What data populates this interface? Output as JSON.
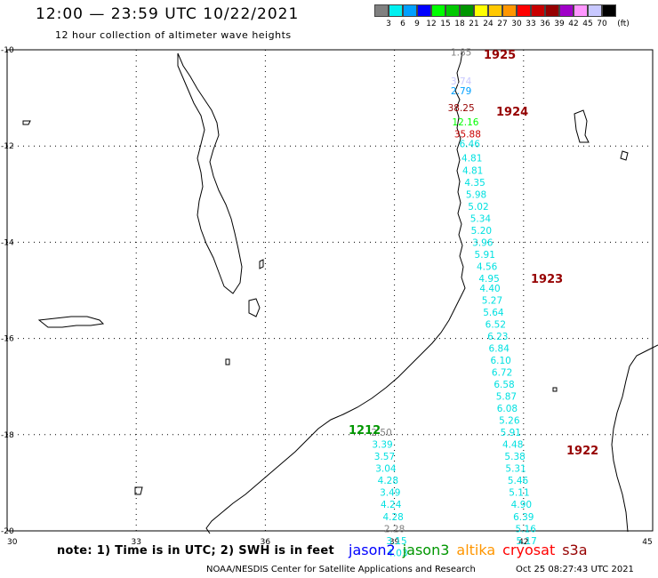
{
  "header": {
    "title": "12:00 — 23:59 UTC 10/22/2021",
    "subtitle": "12 hour collection of altimeter wave heights"
  },
  "legend": {
    "colors": [
      "#808080",
      "#00f0f0",
      "#00a0ff",
      "#0000ff",
      "#00ff00",
      "#00c800",
      "#009600",
      "#ffff00",
      "#ffc800",
      "#ff9600",
      "#ff0000",
      "#c80000",
      "#960000",
      "#a000c8",
      "#ff96ff",
      "#c8c8ff",
      "#000000"
    ],
    "labels": [
      "3",
      "6",
      "9",
      "12",
      "15",
      "18",
      "21",
      "24",
      "27",
      "30",
      "33",
      "36",
      "39",
      "42",
      "45",
      "70",
      "(ft)"
    ]
  },
  "axes": {
    "lon_labels": [
      "30",
      "33",
      "36",
      "39",
      "42",
      "45"
    ],
    "lat_labels": [
      "-10",
      "-12",
      "-14",
      "-16",
      "-18",
      "-20"
    ]
  },
  "tracks": [
    {
      "pass": "1925",
      "pass_color": "#960000",
      "points": [
        {
          "lat": -10.05,
          "lon": 40.55,
          "v": "1.85",
          "c": "#808080"
        }
      ]
    },
    {
      "pass": "1924",
      "pass_color": "#960000",
      "points": [
        {
          "lat": -10.65,
          "lon": 40.55,
          "v": "3.74",
          "c": "#c8c8ff"
        },
        {
          "lat": -10.85,
          "lon": 40.55,
          "v": "2.79",
          "c": "#00a0ff"
        },
        {
          "lat": -11.2,
          "lon": 40.55,
          "v": "38.25",
          "c": "#960000"
        },
        {
          "lat": -11.5,
          "lon": 40.65,
          "v": "12.16",
          "c": "#00ff00"
        },
        {
          "lat": -11.75,
          "lon": 40.7,
          "v": "35.88",
          "c": "#c80000"
        },
        {
          "lat": -11.95,
          "lon": 40.75,
          "v": "6.46",
          "c": "#00e0e0"
        },
        {
          "lat": -12.25,
          "lon": 40.8,
          "v": "4.81",
          "c": "#00e0e0"
        },
        {
          "lat": -12.5,
          "lon": 40.82,
          "v": "4.81",
          "c": "#00e0e0"
        },
        {
          "lat": -12.75,
          "lon": 40.87,
          "v": "4.35",
          "c": "#00e0e0"
        },
        {
          "lat": -13.0,
          "lon": 40.9,
          "v": "5.98",
          "c": "#00e0e0"
        },
        {
          "lat": -13.25,
          "lon": 40.95,
          "v": "5.02",
          "c": "#00e0e0"
        },
        {
          "lat": -13.5,
          "lon": 41.0,
          "v": "5.34",
          "c": "#00e0e0"
        },
        {
          "lat": -13.75,
          "lon": 41.02,
          "v": "5.20",
          "c": "#00e0e0"
        },
        {
          "lat": -14.0,
          "lon": 41.05,
          "v": "3.96",
          "c": "#00e0e0"
        },
        {
          "lat": -14.25,
          "lon": 41.1,
          "v": "5.91",
          "c": "#00e0e0"
        },
        {
          "lat": -14.5,
          "lon": 41.15,
          "v": "4.56",
          "c": "#00e0e0"
        },
        {
          "lat": -14.75,
          "lon": 41.2,
          "v": "4.95",
          "c": "#00e0e0"
        },
        {
          "lat": -14.95,
          "lon": 41.22,
          "v": "4.40",
          "c": "#00e0e0"
        },
        {
          "lat": -15.2,
          "lon": 41.27,
          "v": "5.27",
          "c": "#00e0e0"
        },
        {
          "lat": -15.45,
          "lon": 41.3,
          "v": "5.64",
          "c": "#00e0e0"
        },
        {
          "lat": -15.7,
          "lon": 41.35,
          "v": "6.52",
          "c": "#00e0e0"
        },
        {
          "lat": -15.95,
          "lon": 41.4,
          "v": "6.23",
          "c": "#00e0e0"
        },
        {
          "lat": -16.2,
          "lon": 41.43,
          "v": "6.84",
          "c": "#00e0e0"
        },
        {
          "lat": -16.45,
          "lon": 41.47,
          "v": "6.10",
          "c": "#00e0e0"
        },
        {
          "lat": -16.7,
          "lon": 41.5,
          "v": "6.72",
          "c": "#00e0e0"
        },
        {
          "lat": -16.95,
          "lon": 41.55,
          "v": "6.58",
          "c": "#00e0e0"
        },
        {
          "lat": -17.2,
          "lon": 41.6,
          "v": "5.87",
          "c": "#00e0e0"
        },
        {
          "lat": -17.45,
          "lon": 41.62,
          "v": "6.08",
          "c": "#00e0e0"
        },
        {
          "lat": -17.7,
          "lon": 41.67,
          "v": "5.26",
          "c": "#00e0e0"
        }
      ]
    },
    {
      "pass": "1923",
      "pass_color": "#960000",
      "points": [
        {
          "lat": -17.95,
          "lon": 41.7,
          "v": "5.91",
          "c": "#00e0e0"
        },
        {
          "lat": -18.2,
          "lon": 41.75,
          "v": "4.48",
          "c": "#00e0e0"
        },
        {
          "lat": -18.45,
          "lon": 41.8,
          "v": "5.38",
          "c": "#00e0e0"
        },
        {
          "lat": -18.7,
          "lon": 41.82,
          "v": "5.31",
          "c": "#00e0e0"
        },
        {
          "lat": -18.95,
          "lon": 41.87,
          "v": "5.46",
          "c": "#00e0e0"
        },
        {
          "lat": -19.2,
          "lon": 41.9,
          "v": "5.11",
          "c": "#00e0e0"
        },
        {
          "lat": -19.45,
          "lon": 41.95,
          "v": "4.90",
          "c": "#00e0e0"
        },
        {
          "lat": -19.7,
          "lon": 42.0,
          "v": "6.39",
          "c": "#00e0e0"
        },
        {
          "lat": -19.95,
          "lon": 42.05,
          "v": "5.16",
          "c": "#00e0e0"
        },
        {
          "lat": -20.2,
          "lon": 42.07,
          "v": "5.17",
          "c": "#00e0e0"
        }
      ]
    },
    {
      "pass": "1922",
      "pass_color": "#960000",
      "points": []
    },
    {
      "pass": "1212",
      "pass_color": "#009600",
      "points": [
        {
          "lat": -17.95,
          "lon": 38.7,
          "v": "2.50",
          "c": "#808080"
        },
        {
          "lat": -18.2,
          "lon": 38.72,
          "v": "3.39",
          "c": "#00e0e0"
        },
        {
          "lat": -18.45,
          "lon": 38.77,
          "v": "3.57",
          "c": "#00e0e0"
        },
        {
          "lat": -18.7,
          "lon": 38.8,
          "v": "3.04",
          "c": "#00e0e0"
        },
        {
          "lat": -18.95,
          "lon": 38.85,
          "v": "4.28",
          "c": "#00e0e0"
        },
        {
          "lat": -19.2,
          "lon": 38.9,
          "v": "3.49",
          "c": "#00e0e0"
        },
        {
          "lat": -19.45,
          "lon": 38.92,
          "v": "4.24",
          "c": "#00e0e0"
        },
        {
          "lat": -19.7,
          "lon": 38.97,
          "v": "4.28",
          "c": "#00e0e0"
        },
        {
          "lat": -19.95,
          "lon": 39.0,
          "v": "2.28",
          "c": "#808080"
        },
        {
          "lat": -20.2,
          "lon": 39.05,
          "v": "3.15",
          "c": "#00e0e0"
        },
        {
          "lat": -20.45,
          "lon": 39.07,
          "v": "4.03",
          "c": "#00e0e0"
        }
      ]
    }
  ],
  "footer": {
    "note": "note: 1) Time is in UTC; 2) SWH is in feet",
    "satellites": [
      {
        "name": "jason2",
        "color": "#0000ff"
      },
      {
        "name": "jason3",
        "color": "#009600"
      },
      {
        "name": "altika",
        "color": "#ff9600"
      },
      {
        "name": "cryosat",
        "color": "#ff0000"
      },
      {
        "name": "s3a",
        "color": "#960000"
      }
    ],
    "credit": "NOAA/NESDIS Center for Satellite Applications and Research",
    "timestamp": "Oct 25 08:27:43 UTC 2021"
  }
}
